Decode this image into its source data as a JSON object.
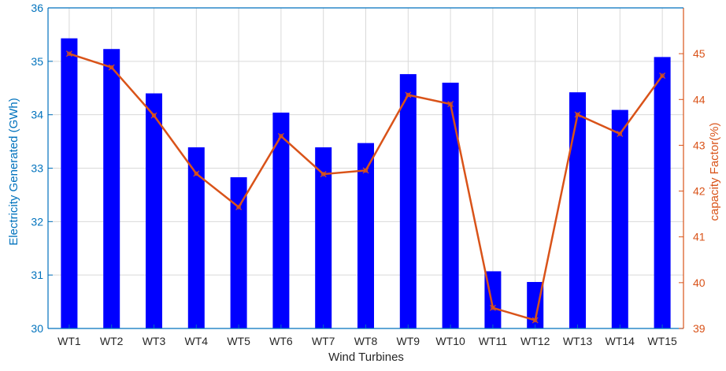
{
  "chart_data": {
    "type": "bar",
    "categories": [
      "WT1",
      "WT2",
      "WT3",
      "WT4",
      "WT5",
      "WT6",
      "WT7",
      "WT8",
      "WT9",
      "WT10",
      "WT11",
      "WT12",
      "WT13",
      "WT14",
      "WT15"
    ],
    "series": [
      {
        "type": "bar",
        "axis": "left",
        "color": "#0000ff",
        "values": [
          35.43,
          35.23,
          34.4,
          33.39,
          32.83,
          34.04,
          33.39,
          33.47,
          34.76,
          34.6,
          31.07,
          30.87,
          34.42,
          34.09,
          35.08
        ]
      },
      {
        "type": "line",
        "axis": "right",
        "color": "#d95319",
        "values": [
          45.0,
          44.7,
          43.65,
          42.38,
          41.65,
          43.2,
          42.37,
          42.45,
          44.1,
          43.9,
          39.45,
          39.18,
          43.67,
          43.25,
          44.52
        ]
      }
    ],
    "xlabel": "Wind Turbines",
    "ylabel_left": "Electricity Generated (GWh)",
    "ylabel_right": "capacity Factor(%)",
    "ylim_left": [
      30,
      36
    ],
    "ylim_right": [
      39,
      46
    ],
    "yticks_left": [
      "30",
      "31",
      "32",
      "33",
      "34",
      "35",
      "36"
    ],
    "yticks_right": [
      "39",
      "40",
      "41",
      "42",
      "43",
      "44",
      "45"
    ],
    "grid": true,
    "colors": {
      "left_axis": "#0072bd",
      "right_axis": "#d95319",
      "bar": "#0000ff",
      "line": "#d95319"
    }
  }
}
